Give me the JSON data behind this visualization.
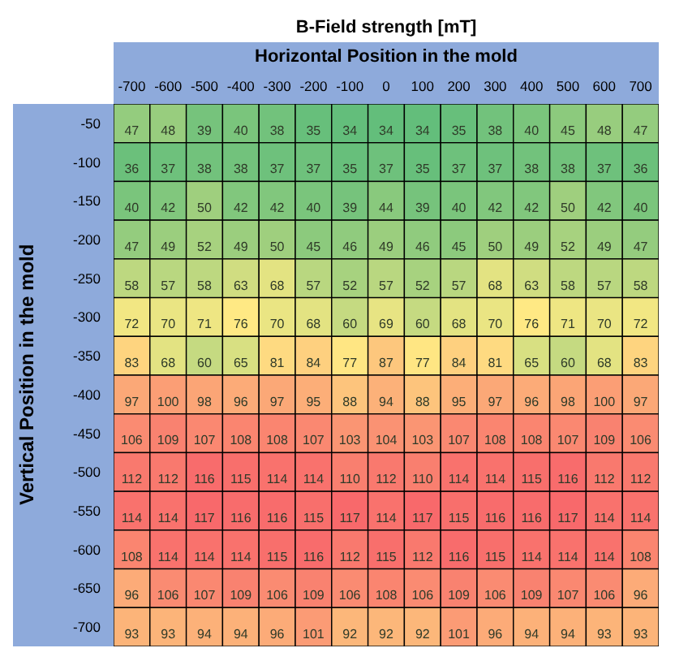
{
  "chart_data": {
    "type": "heatmap",
    "title": "B-Field strength [mT]",
    "xlabel": "Horizontal Position in the mold",
    "ylabel": "Vertical Position in the mold",
    "data_labels": true,
    "categories": [
      "-700",
      "-600",
      "-500",
      "-400",
      "-300",
      "-200",
      "-100",
      "0",
      "100",
      "200",
      "300",
      "400",
      "500",
      "600",
      "700"
    ],
    "y_categories": [
      "-50",
      "-100",
      "-150",
      "-200",
      "-250",
      "-300",
      "-350",
      "-400",
      "-450",
      "-500",
      "-550",
      "-600",
      "-650",
      "-700"
    ],
    "cells": [
      [
        47,
        48,
        39,
        40,
        38,
        35,
        34,
        34,
        34,
        35,
        38,
        40,
        45,
        48,
        47
      ],
      [
        36,
        37,
        38,
        38,
        37,
        37,
        35,
        37,
        35,
        37,
        37,
        38,
        38,
        37,
        36
      ],
      [
        40,
        42,
        50,
        42,
        42,
        40,
        39,
        44,
        39,
        40,
        42,
        42,
        50,
        42,
        40
      ],
      [
        47,
        49,
        52,
        49,
        50,
        45,
        46,
        49,
        46,
        45,
        50,
        49,
        52,
        49,
        47
      ],
      [
        58,
        57,
        58,
        63,
        68,
        57,
        52,
        57,
        52,
        57,
        68,
        63,
        58,
        57,
        58
      ],
      [
        72,
        70,
        71,
        76,
        70,
        68,
        60,
        69,
        60,
        68,
        70,
        76,
        71,
        70,
        72
      ],
      [
        83,
        68,
        60,
        65,
        81,
        84,
        77,
        87,
        77,
        84,
        81,
        65,
        60,
        68,
        83
      ],
      [
        97,
        100,
        98,
        96,
        97,
        95,
        88,
        94,
        88,
        95,
        97,
        96,
        98,
        100,
        97
      ],
      [
        106,
        109,
        107,
        108,
        108,
        107,
        103,
        104,
        103,
        107,
        108,
        108,
        107,
        109,
        106
      ],
      [
        112,
        112,
        116,
        115,
        114,
        114,
        110,
        112,
        110,
        114,
        114,
        115,
        116,
        112,
        112
      ],
      [
        114,
        114,
        117,
        116,
        116,
        115,
        117,
        114,
        117,
        115,
        116,
        116,
        117,
        114,
        114
      ],
      [
        108,
        114,
        114,
        114,
        115,
        116,
        112,
        115,
        112,
        116,
        115,
        114,
        114,
        114,
        108
      ],
      [
        96,
        106,
        107,
        109,
        106,
        109,
        106,
        108,
        106,
        109,
        106,
        109,
        107,
        106,
        96
      ],
      [
        93,
        93,
        94,
        94,
        96,
        101,
        92,
        92,
        92,
        101,
        96,
        94,
        94,
        93,
        93
      ]
    ]
  }
}
